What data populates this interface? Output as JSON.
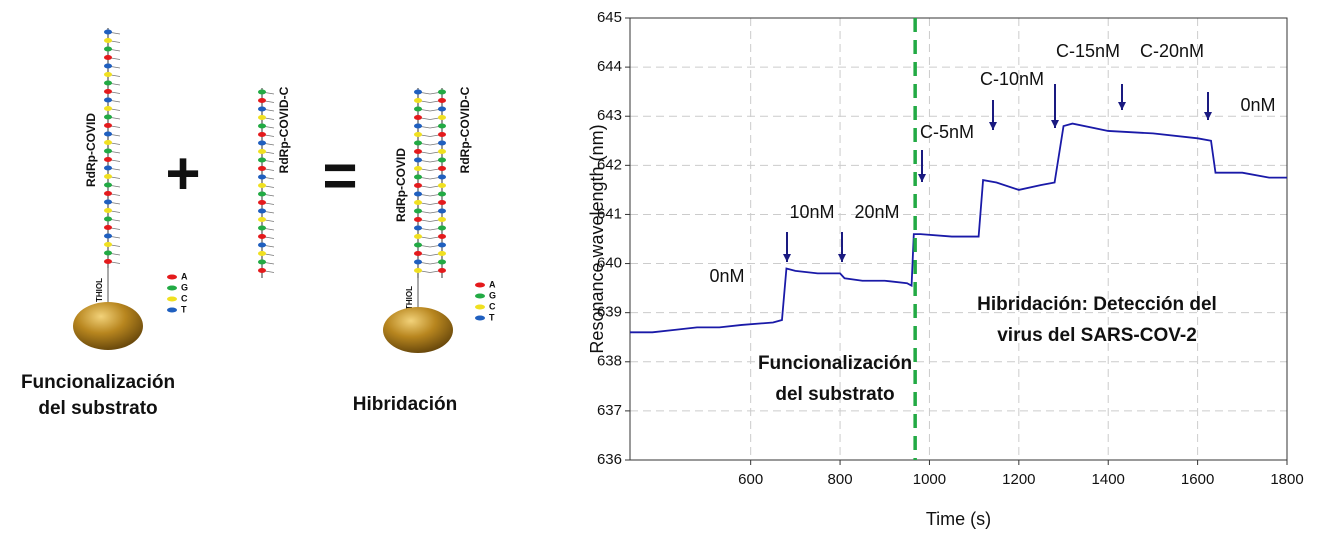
{
  "chart_data": {
    "type": "line",
    "x_label": "Time (s)",
    "y_label": "Resonance wavelength (nm)",
    "x": [
      330,
      380,
      430,
      480,
      530,
      580,
      650,
      670,
      680,
      700,
      750,
      800,
      810,
      850,
      900,
      950,
      960,
      965,
      980,
      1050,
      1110,
      1120,
      1150,
      1200,
      1250,
      1280,
      1300,
      1320,
      1400,
      1500,
      1600,
      1630,
      1640,
      1700,
      1760,
      1800
    ],
    "series": [
      {
        "color": "#1a1aa8",
        "values": [
          638.6,
          638.6,
          638.65,
          638.7,
          638.7,
          638.75,
          638.8,
          638.85,
          639.9,
          639.85,
          639.8,
          639.8,
          639.7,
          639.65,
          639.65,
          639.6,
          639.55,
          640.6,
          640.6,
          640.55,
          640.55,
          641.7,
          641.65,
          641.5,
          641.6,
          641.65,
          642.8,
          642.85,
          642.7,
          642.65,
          642.55,
          642.5,
          641.85,
          641.85,
          641.75,
          641.75
        ]
      }
    ],
    "xlim": [
      330,
      1800
    ],
    "ylim": [
      636,
      645
    ],
    "xticks": [
      600,
      800,
      1000,
      1200,
      1400,
      1600,
      1800
    ],
    "yticks": [
      636,
      637,
      638,
      639,
      640,
      641,
      642,
      643,
      644,
      645
    ],
    "grid": true,
    "vline": {
      "x": 968,
      "color": "#22aa44"
    },
    "annotations": [
      "0nM",
      "10nM",
      "20nM",
      "C-5nM",
      "C-10nM",
      "C-15nM",
      "C-20nM",
      "0nM"
    ],
    "stage_labels": [
      {
        "lines": [
          "Funcionalización",
          "del substrato"
        ],
        "color": "#1f7bbf"
      },
      {
        "lines": [
          "Hibridación: Detección del",
          "virus del SARS-COV-2"
        ],
        "color": "#e41a1c"
      }
    ]
  },
  "diagram": {
    "strand_label": "RdRp-COVID",
    "complement_label": "RdRp-COVID-C",
    "thiol": "THIOL",
    "bases": [
      "A",
      "G",
      "C",
      "T"
    ],
    "plus": "+",
    "equals": "=",
    "caption_left": [
      "Funcionalización",
      "del substrato"
    ],
    "caption_right": "Hibridación"
  }
}
